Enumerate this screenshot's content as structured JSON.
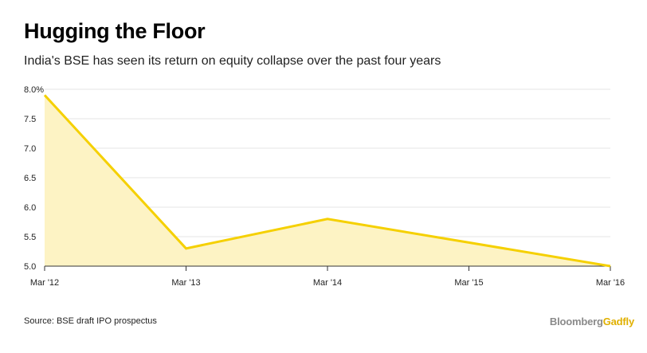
{
  "chart_data": {
    "type": "area",
    "title": "Hugging the Floor",
    "subtitle": "India's BSE has seen its return on equity collapse over the past four years",
    "categories": [
      "Mar '12",
      "Mar '13",
      "Mar '14",
      "Mar '15",
      "Mar '16"
    ],
    "series": [
      {
        "name": "Return on equity (%)",
        "values": [
          7.9,
          5.3,
          5.8,
          5.4,
          5.0
        ]
      }
    ],
    "ylim": [
      5.0,
      8.0
    ],
    "yticks": [
      5.0,
      5.5,
      6.0,
      6.5,
      7.0,
      7.5,
      8.0
    ],
    "ytick_labels": [
      "5.0",
      "5.5",
      "6.0",
      "6.5",
      "7.0",
      "7.5",
      "8.0%"
    ],
    "xlabel": "",
    "ylabel": "",
    "grid": true,
    "colors": {
      "line": "#f5d000",
      "fill": "#fdf3c4",
      "grid": "#e6e6e6",
      "axis": "#333333"
    }
  },
  "footer": {
    "source": "Source: BSE draft IPO prospectus",
    "brand_primary": "Bloomberg",
    "brand_secondary": "Gadfly"
  }
}
